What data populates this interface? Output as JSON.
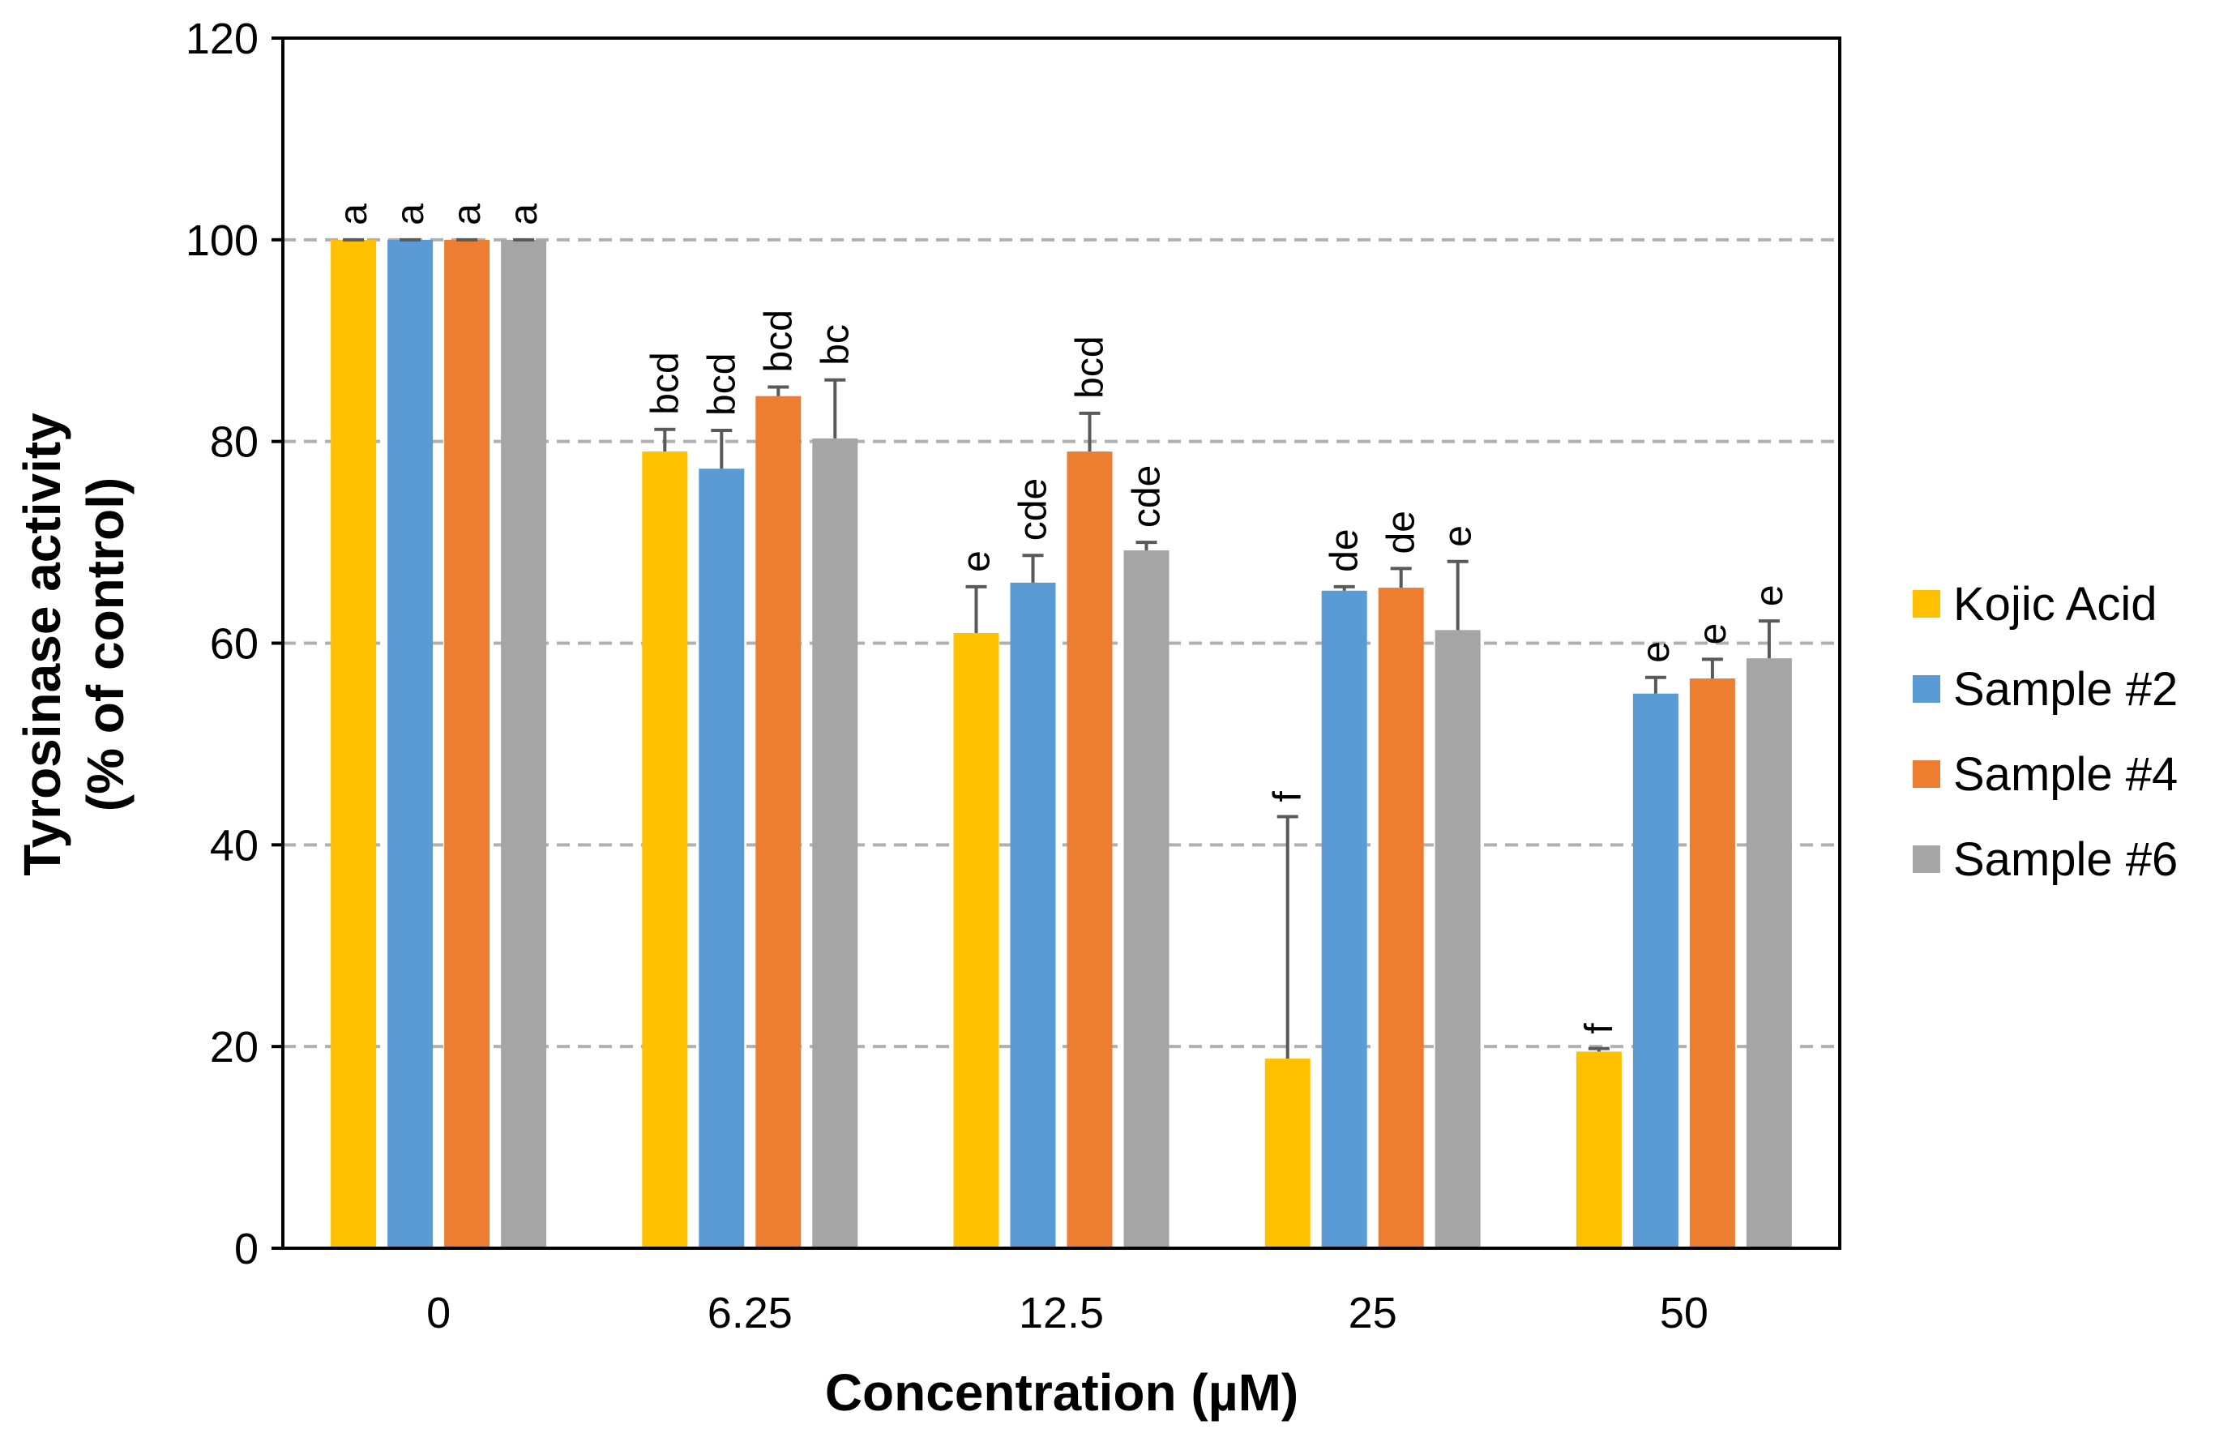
{
  "chart_data": {
    "type": "bar",
    "title": "",
    "xlabel": "Concentration (µM)",
    "ylabel_lines": [
      "Tyrosinase activity",
      "(% of control)"
    ],
    "categories": [
      "0",
      "6.25",
      "12.5",
      "25",
      "50"
    ],
    "ylim": [
      0,
      120
    ],
    "yticks": [
      "0",
      "20",
      "40",
      "60",
      "80",
      "100",
      "120"
    ],
    "grid": true,
    "legend_position": "right",
    "series": [
      {
        "name": "Kojic Acid",
        "color": "#FFC000",
        "values": [
          100,
          79,
          61,
          18.8,
          19.5
        ],
        "errors": [
          0,
          2.2,
          4.6,
          24,
          0.3
        ],
        "labels": [
          "a",
          "bcd",
          "e",
          "f",
          "f"
        ]
      },
      {
        "name": "Sample #2",
        "color": "#5B9BD5",
        "values": [
          100,
          77.3,
          66,
          65.2,
          55
        ],
        "errors": [
          0,
          3.8,
          2.7,
          0.4,
          1.6
        ],
        "labels": [
          "a",
          "bcd",
          "cde",
          "de",
          "e"
        ]
      },
      {
        "name": "Sample #4",
        "color": "#ED7D31",
        "values": [
          100,
          84.5,
          79,
          65.5,
          56.5
        ],
        "errors": [
          0,
          0.9,
          3.8,
          1.9,
          1.9
        ],
        "labels": [
          "a",
          "bcd",
          "bcd",
          "de",
          "e"
        ]
      },
      {
        "name": "Sample #6",
        "color": "#A5A5A5",
        "values": [
          100,
          80.3,
          69.2,
          61.3,
          58.5
        ],
        "errors": [
          0,
          5.8,
          0.8,
          6.8,
          3.7
        ],
        "labels": [
          "a",
          "bc",
          "cde",
          "e",
          "e"
        ]
      }
    ]
  }
}
